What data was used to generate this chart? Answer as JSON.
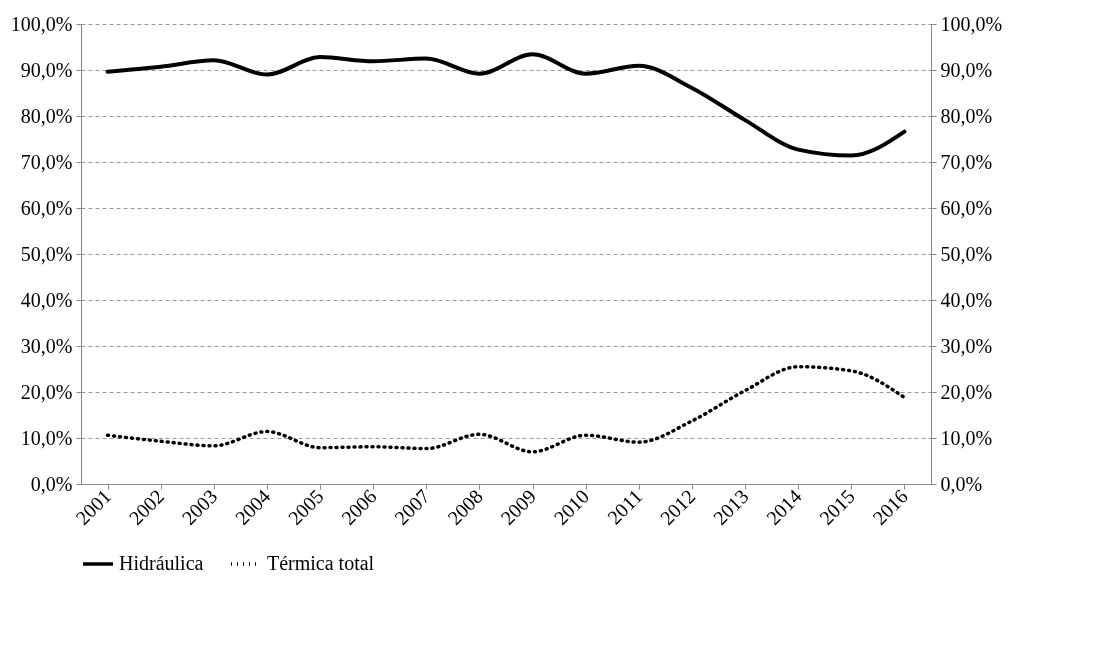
{
  "chart_data": {
    "type": "line",
    "categories": [
      "2001",
      "2002",
      "2003",
      "2004",
      "2005",
      "2006",
      "2007",
      "2008",
      "2009",
      "2010",
      "2011",
      "2012",
      "2013",
      "2014",
      "2015",
      "2016"
    ],
    "series": [
      {
        "name": "Hidráulica",
        "color": "#000000",
        "line_style": "solid",
        "values": [
          89.6,
          90.7,
          92.1,
          89.0,
          92.8,
          91.9,
          92.5,
          89.2,
          93.4,
          89.2,
          90.9,
          86.1,
          79.1,
          72.7,
          71.4,
          76.6
        ]
      },
      {
        "name": "Térmica total",
        "color": "#000000",
        "line_style": "dotted",
        "axis": "y2",
        "values": [
          10.6,
          9.3,
          8.3,
          11.4,
          7.9,
          8.1,
          7.7,
          10.8,
          7.0,
          10.6,
          9.1,
          13.7,
          20.3,
          25.5,
          24.6,
          18.8
        ]
      }
    ],
    "ylim": [
      0,
      100
    ],
    "yticks": [
      {
        "value": 0,
        "label": "0,0%"
      },
      {
        "value": 10,
        "label": "10,0%"
      },
      {
        "value": 20,
        "label": "20,0%"
      },
      {
        "value": 30,
        "label": "30,0%"
      },
      {
        "value": 40,
        "label": "40,0%"
      },
      {
        "value": 50,
        "label": "50,0%"
      },
      {
        "value": 60,
        "label": "60,0%"
      },
      {
        "value": 70,
        "label": "70,0%"
      },
      {
        "value": 80,
        "label": "80,0%"
      },
      {
        "value": 90,
        "label": "90,0%"
      },
      {
        "value": 100,
        "label": "100,0%"
      }
    ],
    "y2lim": [
      0,
      100
    ],
    "y2ticks": [
      {
        "value": 0,
        "label": "0,0%"
      },
      {
        "value": 10,
        "label": "10,0%"
      },
      {
        "value": 20,
        "label": "20,0%"
      },
      {
        "value": 30,
        "label": "30,0%"
      },
      {
        "value": 40,
        "label": "40,0%"
      },
      {
        "value": 50,
        "label": "50,0%"
      },
      {
        "value": 60,
        "label": "60,0%"
      },
      {
        "value": 70,
        "label": "70,0%"
      },
      {
        "value": 80,
        "label": "80,0%"
      },
      {
        "value": 90,
        "label": "90,0%"
      },
      {
        "value": 100,
        "label": "100,0%"
      }
    ],
    "grid": "y",
    "legend": "bottom"
  }
}
